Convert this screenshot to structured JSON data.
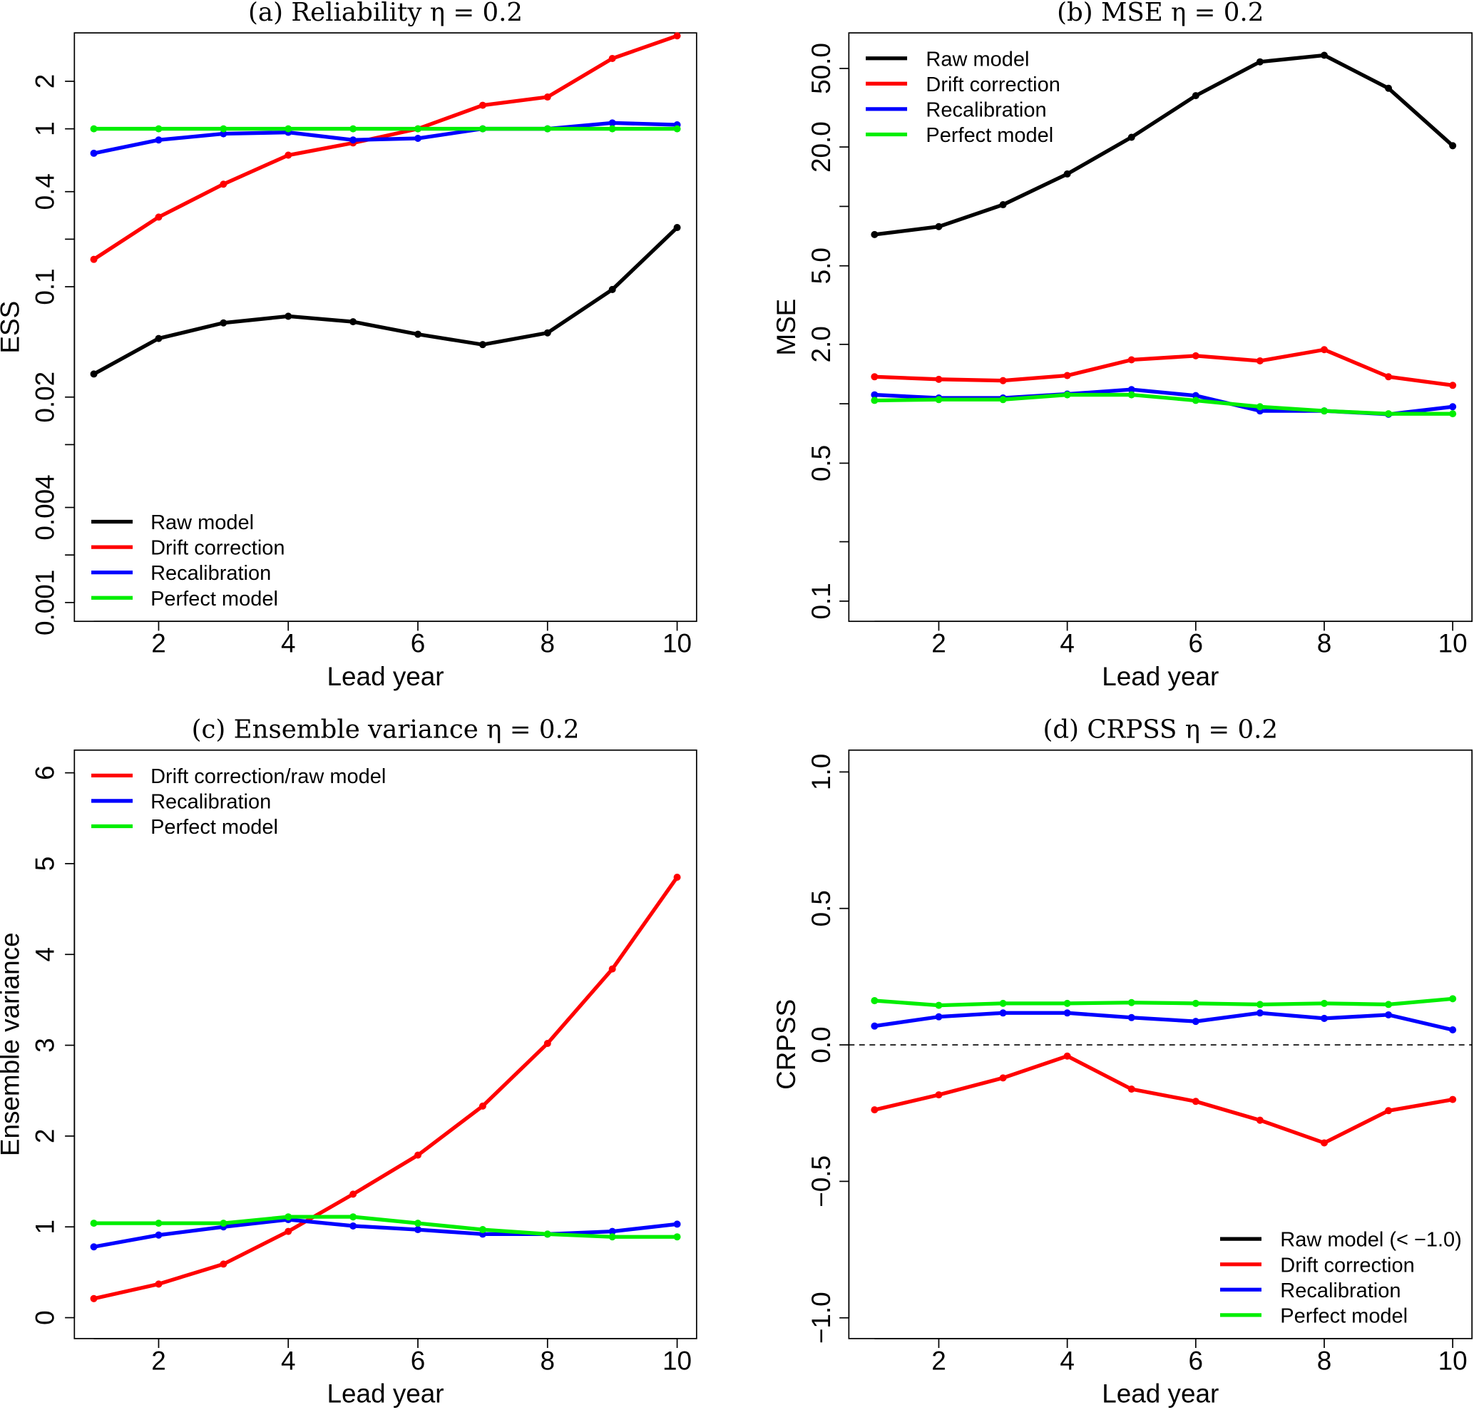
{
  "chart_data": [
    {
      "type": "line",
      "title": "(a) Reliability η = 0.2",
      "xlabel": "Lead year",
      "ylabel": "ESS",
      "yscale": "log",
      "xlim": [
        0.7,
        10.3
      ],
      "ylim": [
        0.00076,
        4.05
      ],
      "xticks": [
        2,
        4,
        6,
        8,
        10
      ],
      "yticks": [
        0.001,
        0.002,
        0.004,
        0.01,
        0.02,
        0.1,
        0.2,
        0.4,
        1,
        2
      ],
      "ytick_labels": [
        "0.001",
        "",
        "0.004",
        "",
        "0.02",
        "0.1",
        "",
        "0.4",
        "1",
        "2"
      ],
      "grid": false,
      "legend_position": "bottom-left",
      "x": [
        1,
        2,
        3,
        4,
        5,
        6,
        7,
        8,
        9,
        10
      ],
      "series": [
        {
          "name": "Raw model",
          "color": "#000000",
          "values": [
            0.028,
            0.047,
            0.059,
            0.065,
            0.06,
            0.05,
            0.043,
            0.051,
            0.096,
            0.237
          ]
        },
        {
          "name": "Drift correction",
          "color": "#ff0000",
          "values": [
            0.149,
            0.276,
            0.446,
            0.681,
            0.814,
            1.0,
            1.41,
            1.59,
            2.79,
            3.88
          ]
        },
        {
          "name": "Recalibration",
          "color": "#0000ff",
          "values": [
            0.7,
            0.85,
            0.93,
            0.95,
            0.85,
            0.87,
            1.0,
            1.0,
            1.09,
            1.06
          ]
        },
        {
          "name": "Perfect model",
          "color": "#00ee00",
          "values": [
            1,
            1,
            1,
            1,
            1,
            1,
            1,
            1,
            1,
            1
          ]
        }
      ]
    },
    {
      "type": "line",
      "title": "(b) MSE η = 0.2",
      "xlabel": "Lead year",
      "ylabel": "MSE",
      "yscale": "log",
      "xlim": [
        0.6,
        10.3
      ],
      "ylim": [
        0.079,
        75.7
      ],
      "xticks": [
        2,
        4,
        6,
        8,
        10
      ],
      "yticks": [
        0.1,
        0.2,
        0.5,
        1.0,
        2.0,
        5.0,
        10.0,
        20.0,
        50.0
      ],
      "ytick_labels": [
        "0.1",
        "",
        "0.5",
        "",
        "2.0",
        "5.0",
        "",
        "20.0",
        "50.0"
      ],
      "grid": false,
      "legend_position": "top-left",
      "x": [
        1,
        2,
        3,
        4,
        5,
        6,
        7,
        8,
        9,
        10
      ],
      "series": [
        {
          "name": "Raw model",
          "color": "#000000",
          "values": [
            7.2,
            7.9,
            10.2,
            14.6,
            22.4,
            36.4,
            54.0,
            58.3,
            39.7,
            20.3
          ]
        },
        {
          "name": "Drift correction",
          "color": "#ff0000",
          "values": [
            1.37,
            1.33,
            1.31,
            1.39,
            1.67,
            1.75,
            1.65,
            1.88,
            1.37,
            1.24
          ]
        },
        {
          "name": "Recalibration",
          "color": "#0000ff",
          "values": [
            1.11,
            1.07,
            1.07,
            1.12,
            1.18,
            1.1,
            0.92,
            0.92,
            0.885,
            0.966
          ]
        },
        {
          "name": "Perfect model",
          "color": "#00ee00",
          "values": [
            1.04,
            1.05,
            1.05,
            1.11,
            1.11,
            1.04,
            0.966,
            0.92,
            0.89,
            0.89
          ]
        }
      ]
    },
    {
      "type": "line",
      "title": "(c) Ensemble variance η = 0.2",
      "xlabel": "Lead year",
      "ylabel": "Ensemble variance",
      "yscale": "linear",
      "xlim": [
        0.7,
        10.3
      ],
      "ylim": [
        -0.23,
        6.25
      ],
      "xticks": [
        2,
        4,
        6,
        8,
        10
      ],
      "yticks": [
        0,
        1,
        2,
        3,
        4,
        5,
        6
      ],
      "ytick_labels": [
        "0",
        "1",
        "2",
        "3",
        "4",
        "5",
        "6"
      ],
      "grid": false,
      "legend_position": "top-left",
      "x": [
        1,
        2,
        3,
        4,
        5,
        6,
        7,
        8,
        9,
        10
      ],
      "series": [
        {
          "name": "Drift correction/raw model",
          "color": "#ff0000",
          "values": [
            0.21,
            0.37,
            0.59,
            0.95,
            1.36,
            1.79,
            2.33,
            3.02,
            3.84,
            4.85
          ]
        },
        {
          "name": "Recalibration",
          "color": "#0000ff",
          "values": [
            0.78,
            0.91,
            1.0,
            1.08,
            1.01,
            0.97,
            0.92,
            0.92,
            0.95,
            1.03
          ]
        },
        {
          "name": "Perfect model",
          "color": "#00ee00",
          "values": [
            1.04,
            1.04,
            1.04,
            1.11,
            1.11,
            1.04,
            0.97,
            0.92,
            0.89,
            0.89
          ]
        }
      ]
    },
    {
      "type": "line",
      "title": "(d) CRPSS η = 0.2",
      "xlabel": "Lead year",
      "ylabel": "CRPSS",
      "yscale": "linear",
      "xlim": [
        0.6,
        10.3
      ],
      "ylim": [
        -1.076,
        1.08
      ],
      "xticks": [
        2,
        4,
        6,
        8,
        10
      ],
      "yticks": [
        -1.0,
        -0.5,
        0.0,
        0.5,
        1.0
      ],
      "ytick_labels": [
        "−1.0",
        "−0.5",
        "0.0",
        "0.5",
        "1.0"
      ],
      "grid": false,
      "reference_line": 0,
      "legend_position": "bottom-right",
      "x": [
        1,
        2,
        3,
        4,
        5,
        6,
        7,
        8,
        9,
        10
      ],
      "legend_only": [
        {
          "name": "Raw model (< −1.0)",
          "color": "#000000"
        }
      ],
      "series": [
        {
          "name": "Drift correction",
          "color": "#ff0000",
          "values": [
            -0.238,
            -0.183,
            -0.121,
            -0.041,
            -0.162,
            -0.207,
            -0.276,
            -0.359,
            -0.241,
            -0.2
          ]
        },
        {
          "name": "Recalibration",
          "color": "#0000ff",
          "values": [
            0.069,
            0.103,
            0.117,
            0.117,
            0.1,
            0.086,
            0.117,
            0.097,
            0.11,
            0.055
          ]
        },
        {
          "name": "Perfect model",
          "color": "#00ee00",
          "values": [
            0.162,
            0.145,
            0.152,
            0.152,
            0.155,
            0.152,
            0.148,
            0.152,
            0.148,
            0.169
          ]
        }
      ]
    }
  ]
}
